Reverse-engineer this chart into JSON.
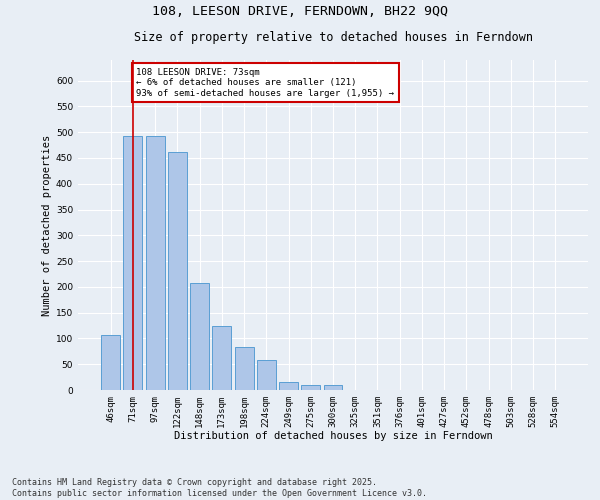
{
  "title": "108, LEESON DRIVE, FERNDOWN, BH22 9QQ",
  "subtitle": "Size of property relative to detached houses in Ferndown",
  "xlabel": "Distribution of detached houses by size in Ferndown",
  "ylabel": "Number of detached properties",
  "categories": [
    "46sqm",
    "71sqm",
    "97sqm",
    "122sqm",
    "148sqm",
    "173sqm",
    "198sqm",
    "224sqm",
    "249sqm",
    "275sqm",
    "300sqm",
    "325sqm",
    "351sqm",
    "376sqm",
    "401sqm",
    "427sqm",
    "452sqm",
    "478sqm",
    "503sqm",
    "528sqm",
    "554sqm"
  ],
  "values": [
    107,
    492,
    492,
    462,
    208,
    125,
    84,
    58,
    15,
    10,
    10,
    0,
    0,
    0,
    0,
    0,
    0,
    0,
    0,
    0,
    0
  ],
  "bar_color": "#aec6e8",
  "bar_edge_color": "#5a9fd4",
  "vline_x": 1.0,
  "vline_color": "#cc0000",
  "annotation_text": "108 LEESON DRIVE: 73sqm\n← 6% of detached houses are smaller (121)\n93% of semi-detached houses are larger (1,955) →",
  "annotation_box_color": "#ffffff",
  "annotation_box_edge": "#cc0000",
  "footer": "Contains HM Land Registry data © Crown copyright and database right 2025.\nContains public sector information licensed under the Open Government Licence v3.0.",
  "ylim": [
    0,
    640
  ],
  "yticks": [
    0,
    50,
    100,
    150,
    200,
    250,
    300,
    350,
    400,
    450,
    500,
    550,
    600
  ],
  "bg_color": "#e8eef5",
  "grid_color": "#ffffff",
  "title_fontsize": 9.5,
  "subtitle_fontsize": 8.5,
  "axis_label_fontsize": 7.5,
  "tick_fontsize": 6.5,
  "annotation_fontsize": 6.5,
  "footer_fontsize": 6.0
}
